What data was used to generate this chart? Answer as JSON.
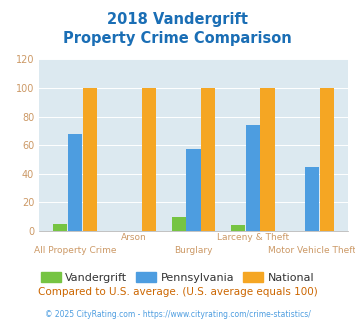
{
  "title_line1": "2018 Vandergrift",
  "title_line2": "Property Crime Comparison",
  "categories": [
    "All Property Crime",
    "Arson",
    "Burglary",
    "Larceny & Theft",
    "Motor Vehicle Theft"
  ],
  "x_labels_row1": [
    "",
    "Arson",
    "",
    "Larceny & Theft",
    ""
  ],
  "x_labels_row2": [
    "All Property Crime",
    "",
    "Burglary",
    "",
    "Motor Vehicle Theft"
  ],
  "vandergrift": [
    5,
    0,
    10,
    4,
    0
  ],
  "pennsylvania": [
    68,
    0,
    57,
    74,
    45
  ],
  "national": [
    100,
    100,
    100,
    100,
    100
  ],
  "vandergrift_color": "#76c442",
  "pennsylvania_color": "#4d9de0",
  "national_color": "#f5a623",
  "ylim": [
    0,
    120
  ],
  "yticks": [
    0,
    20,
    40,
    60,
    80,
    100,
    120
  ],
  "plot_bg_color": "#dce9f0",
  "title_color": "#1a6eb5",
  "tick_color": "#cc9966",
  "footer_text": "Compared to U.S. average. (U.S. average equals 100)",
  "footer_color": "#cc6600",
  "credit_text": "© 2025 CityRating.com - https://www.cityrating.com/crime-statistics/",
  "credit_color": "#4d9de0",
  "legend_labels": [
    "Vandergrift",
    "Pennsylvania",
    "National"
  ],
  "legend_text_color": "#333333"
}
